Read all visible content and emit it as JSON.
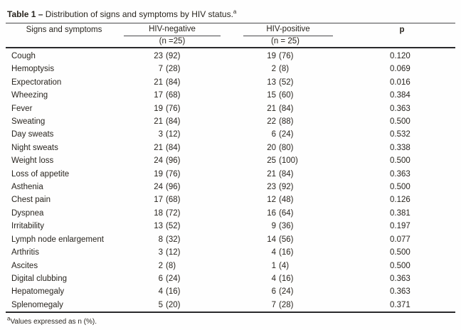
{
  "colors": {
    "text": "#29251f",
    "thin_rule": "#4a4a4c",
    "thick_rule": "#2a2a2c",
    "background": "#fefefe"
  },
  "table": {
    "title_prefix": "Table 1 –",
    "title_text": " Distribution of signs and symptoms by HIV status.",
    "title_superscript": "a",
    "header": {
      "signs": "Signs and symptoms",
      "neg_group": "HIV-negative",
      "neg_n": "(n =25)",
      "pos_group": "HIV-positive",
      "pos_n": "(n = 25)",
      "p": "p"
    },
    "rows": [
      {
        "label": "Cough",
        "neg_n": "23",
        "neg_pct": "(92)",
        "pos_n": "19",
        "pos_pct": "(76)",
        "p": "0.120"
      },
      {
        "label": "Hemoptysis",
        "neg_n": "7",
        "neg_pct": "(28)",
        "pos_n": "2",
        "pos_pct": "(8)",
        "p": "0.069"
      },
      {
        "label": "Expectoration",
        "neg_n": "21",
        "neg_pct": "(84)",
        "pos_n": "13",
        "pos_pct": "(52)",
        "p": "0.016"
      },
      {
        "label": "Wheezing",
        "neg_n": "17",
        "neg_pct": "(68)",
        "pos_n": "15",
        "pos_pct": "(60)",
        "p": "0.384"
      },
      {
        "label": "Fever",
        "neg_n": "19",
        "neg_pct": "(76)",
        "pos_n": "21",
        "pos_pct": "(84)",
        "p": "0.363"
      },
      {
        "label": "Sweating",
        "neg_n": "21",
        "neg_pct": "(84)",
        "pos_n": "22",
        "pos_pct": "(88)",
        "p": "0.500"
      },
      {
        "label": "Day sweats",
        "neg_n": "3",
        "neg_pct": "(12)",
        "pos_n": "6",
        "pos_pct": "(24)",
        "p": "0.532"
      },
      {
        "label": "Night sweats",
        "neg_n": "21",
        "neg_pct": "(84)",
        "pos_n": "20",
        "pos_pct": "(80)",
        "p": "0.338"
      },
      {
        "label": "Weight loss",
        "neg_n": "24",
        "neg_pct": "(96)",
        "pos_n": "25",
        "pos_pct": "(100)",
        "p": "0.500"
      },
      {
        "label": "Loss of appetite",
        "neg_n": "19",
        "neg_pct": "(76)",
        "pos_n": "21",
        "pos_pct": "(84)",
        "p": "0.363"
      },
      {
        "label": "Asthenia",
        "neg_n": "24",
        "neg_pct": "(96)",
        "pos_n": "23",
        "pos_pct": "(92)",
        "p": "0.500"
      },
      {
        "label": "Chest pain",
        "neg_n": "17",
        "neg_pct": "(68)",
        "pos_n": "12",
        "pos_pct": "(48)",
        "p": "0.126"
      },
      {
        "label": "Dyspnea",
        "neg_n": "18",
        "neg_pct": "(72)",
        "pos_n": "16",
        "pos_pct": "(64)",
        "p": "0.381"
      },
      {
        "label": "Irritability",
        "neg_n": "13",
        "neg_pct": "(52)",
        "pos_n": "9",
        "pos_pct": "(36)",
        "p": "0.197"
      },
      {
        "label": "Lymph node enlargement",
        "neg_n": "8",
        "neg_pct": "(32)",
        "pos_n": "14",
        "pos_pct": "(56)",
        "p": "0.077"
      },
      {
        "label": "Arthritis",
        "neg_n": "3",
        "neg_pct": "(12)",
        "pos_n": "4",
        "pos_pct": "(16)",
        "p": "0.500"
      },
      {
        "label": "Ascites",
        "neg_n": "2",
        "neg_pct": "(8)",
        "pos_n": "1",
        "pos_pct": "(4)",
        "p": "0.500"
      },
      {
        "label": "Digital clubbing",
        "neg_n": "6",
        "neg_pct": "(24)",
        "pos_n": "4",
        "pos_pct": "(16)",
        "p": "0.363"
      },
      {
        "label": "Hepatomegaly",
        "neg_n": "4",
        "neg_pct": "(16)",
        "pos_n": "6",
        "pos_pct": "(24)",
        "p": "0.363"
      },
      {
        "label": "Splenomegaly",
        "neg_n": "5",
        "neg_pct": "(20)",
        "pos_n": "7",
        "pos_pct": "(28)",
        "p": "0.371"
      }
    ],
    "footnote_superscript": "a",
    "footnote_text": "Values expressed as n (%)."
  }
}
